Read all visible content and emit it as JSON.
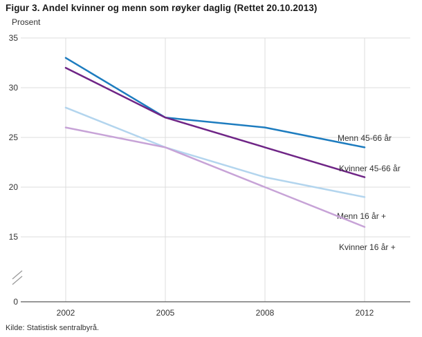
{
  "title": "Figur 3. Andel kvinner og menn som røyker daglig (Rettet 20.10.2013)",
  "unit_label": "Prosent",
  "source": "Kilde: Statistisk sentralbyrå.",
  "chart_data": {
    "type": "line",
    "title": "Figur 3. Andel kvinner og menn som røyker daglig (Rettet 20.10.2013)",
    "ylabel": "Prosent",
    "xlabel": "",
    "x": [
      "2002",
      "2005",
      "2008",
      "2012"
    ],
    "series": [
      {
        "name": "Menn 45-66 år",
        "values": [
          33,
          27,
          26,
          24
        ],
        "color": "#1d7cbf"
      },
      {
        "name": "Kvinner 45-66 år",
        "values": [
          32,
          27,
          24,
          21
        ],
        "color": "#6f2586"
      },
      {
        "name": "Menn 16 år +",
        "values": [
          28,
          24,
          21,
          19
        ],
        "color": "#b3d5ee"
      },
      {
        "name": "Kvinner 16 år +",
        "values": [
          26,
          24,
          20,
          16
        ],
        "color": "#c7a3d7"
      }
    ],
    "yticks": [
      0,
      15,
      20,
      25,
      30,
      35
    ],
    "ylim_display": [
      15,
      35
    ],
    "axis_break_at_zero": true,
    "grid": true,
    "legend_position": "inline-right-labels"
  }
}
